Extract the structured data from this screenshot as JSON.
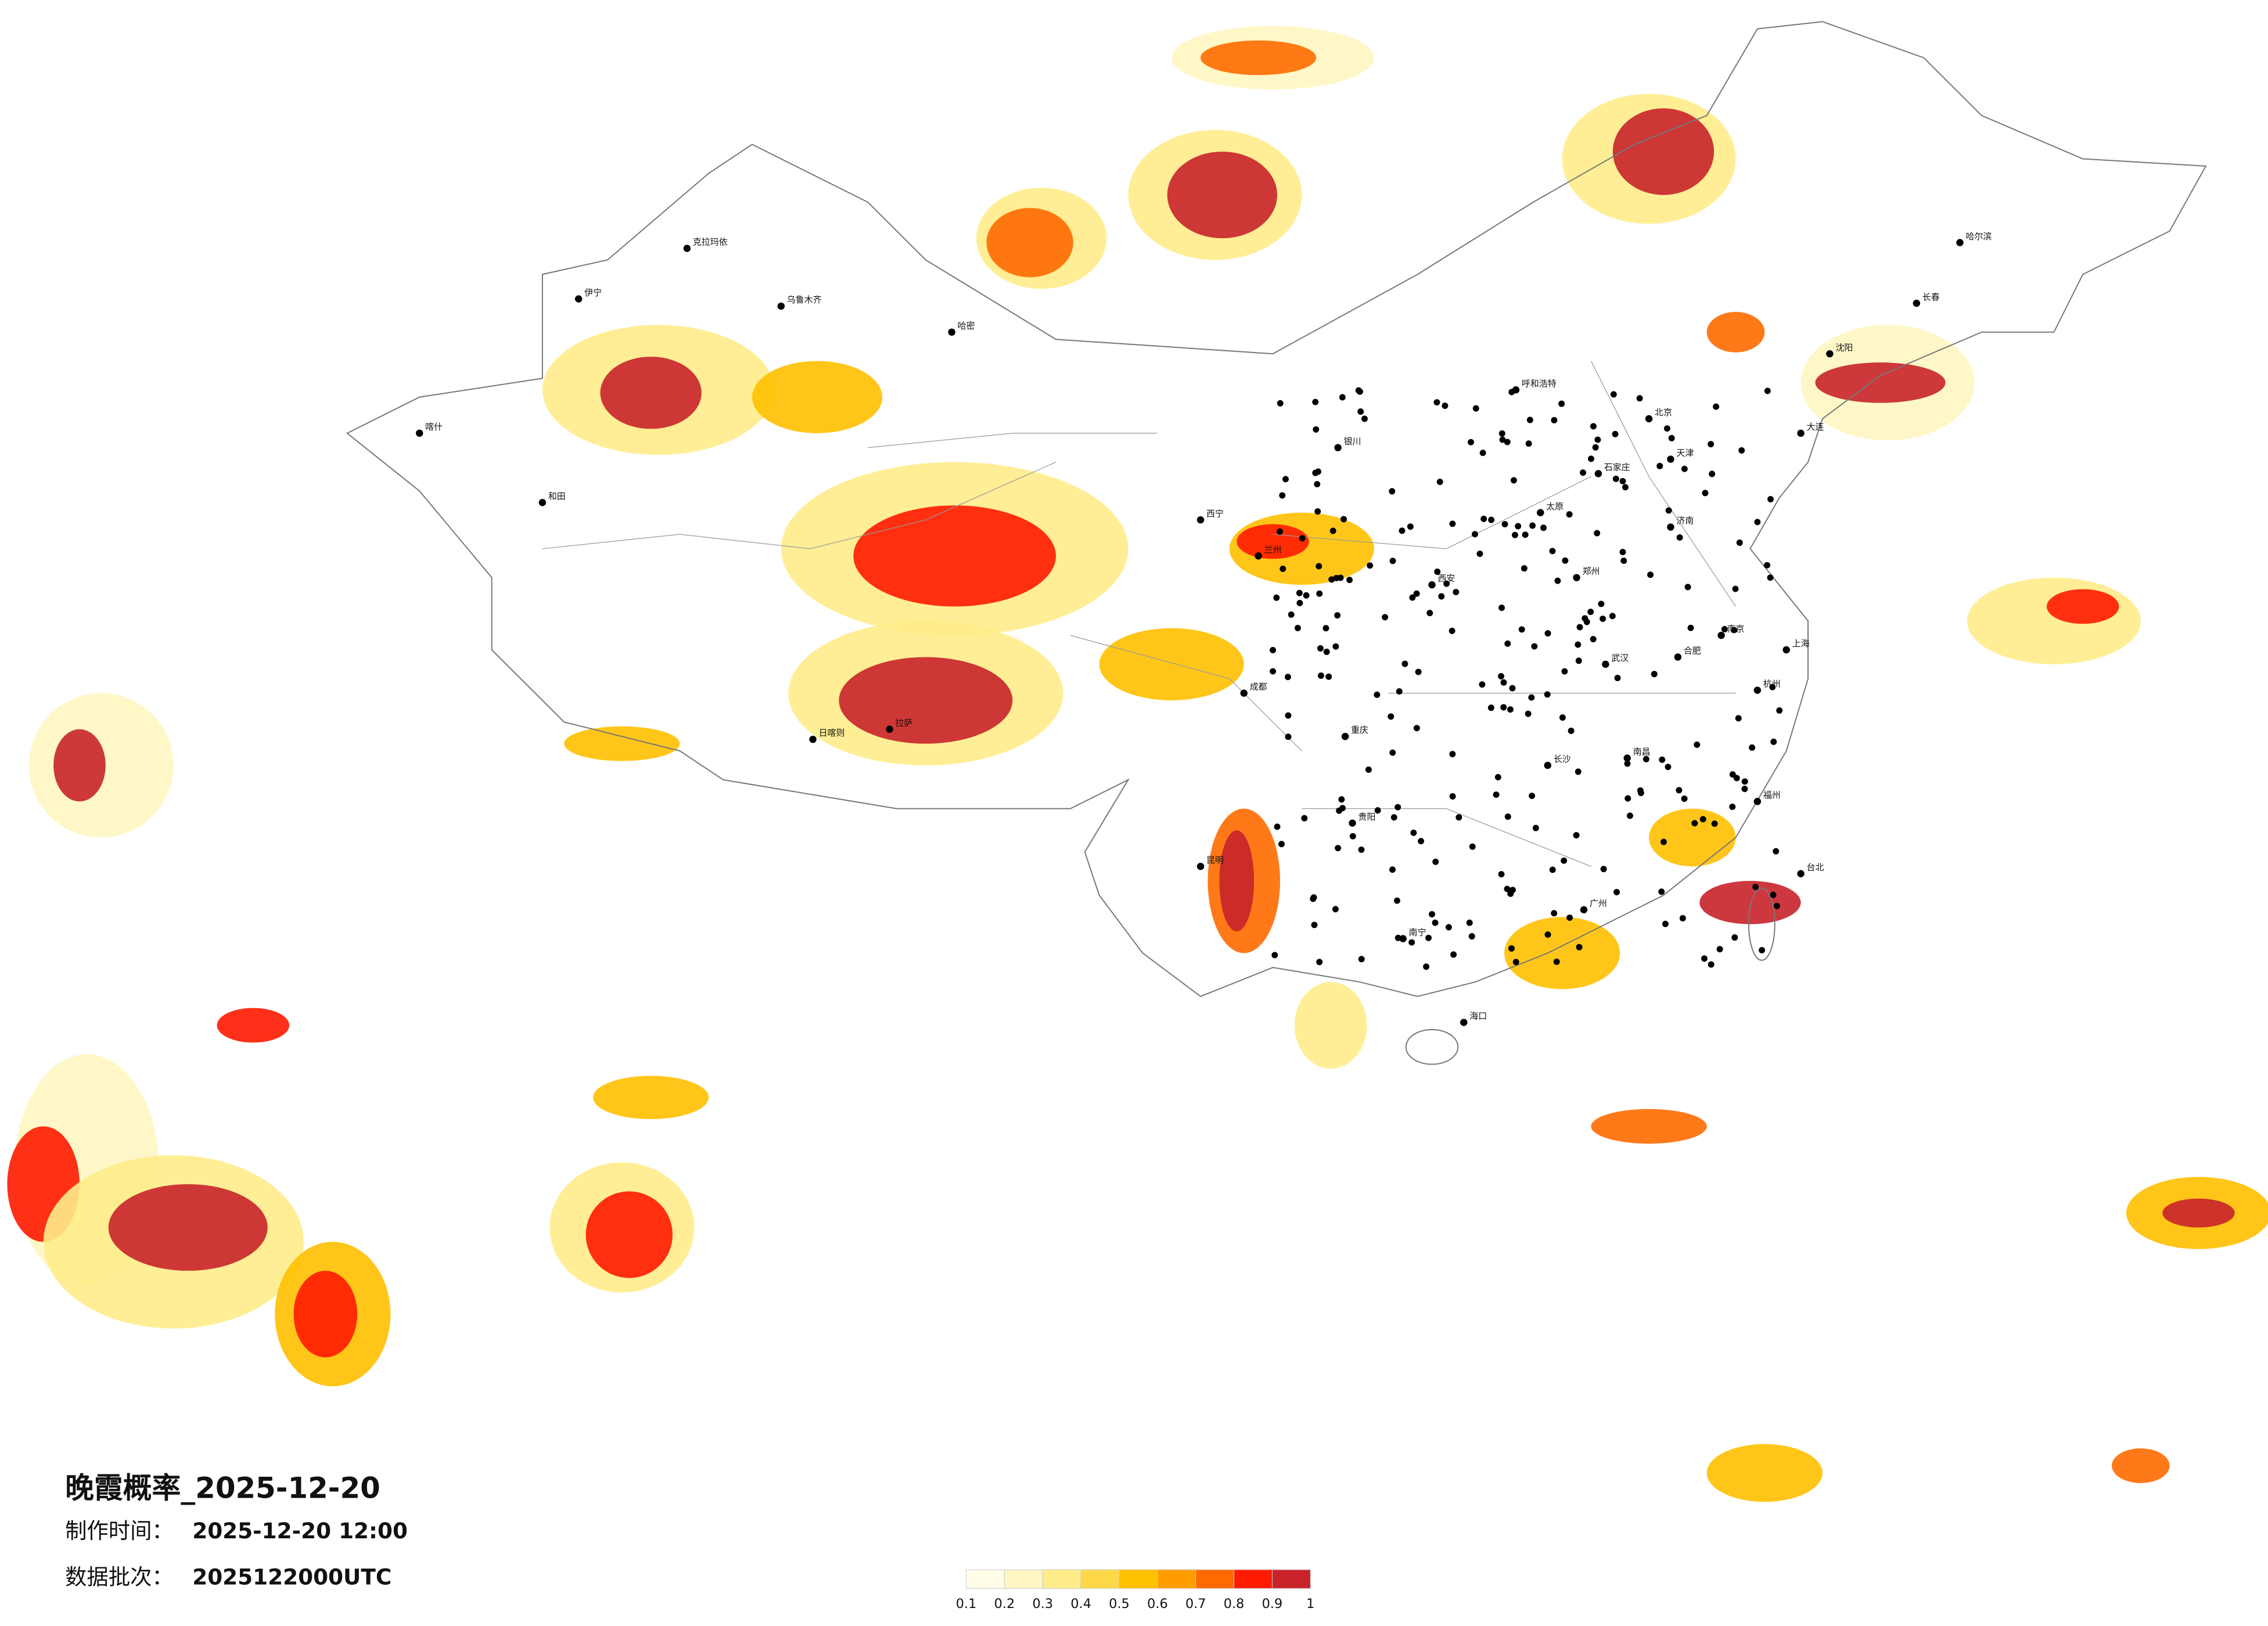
{
  "header": {
    "title": "晚霞概率_2025-12-20"
  },
  "info": [
    {
      "label": "制作时间：",
      "value": "2025-12-20 12:00"
    },
    {
      "label": "数据批次：",
      "value": "2025122000UTC"
    }
  ],
  "legend": {
    "ticks": [
      0.1,
      0.2,
      0.3,
      0.4,
      0.5,
      0.6,
      0.7,
      0.8,
      0.9,
      1
    ],
    "colors": [
      "#fffde8",
      "#fff6c2",
      "#ffec8a",
      "#ffd84a",
      "#ffc000",
      "#ff9c00",
      "#ff6a00",
      "#ff1a00",
      "#c8222a"
    ]
  },
  "cities": [
    "乌鲁木齐",
    "克拉玛依",
    "哈密",
    "喀什",
    "和田",
    "伊宁",
    "拉萨",
    "日喀则",
    "西宁",
    "兰州",
    "银川",
    "呼和浩特",
    "北京",
    "天津",
    "石家庄",
    "太原",
    "济南",
    "郑州",
    "西安",
    "成都",
    "重庆",
    "武汉",
    "长沙",
    "南昌",
    "合肥",
    "南京",
    "上海",
    "杭州",
    "福州",
    "广州",
    "南宁",
    "海口",
    "贵阳",
    "昆明",
    "哈尔滨",
    "长春",
    "沈阳",
    "大连",
    "台北"
  ]
}
